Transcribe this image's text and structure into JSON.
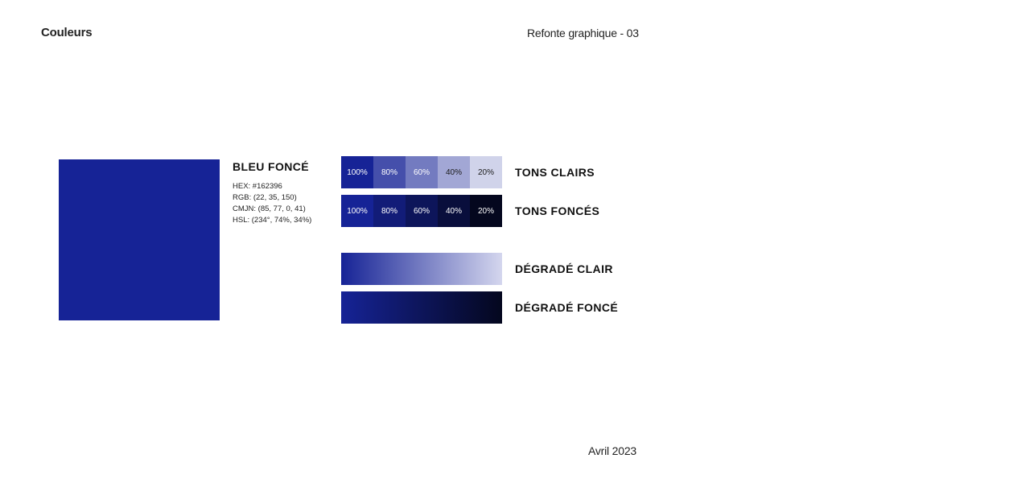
{
  "header": {
    "title": "Couleurs",
    "project": "Refonte graphique - 03"
  },
  "footer": {
    "date": "Avril 2023"
  },
  "color": {
    "name": "BLEU FONCÉ",
    "hex_color": "#162396",
    "specs": {
      "hex": "HEX: #162396",
      "rgb": "RGB: (22, 35, 150)",
      "cmjn": "CMJN: (85, 77, 0, 41)",
      "hsl": "HSL: (234°, 74%, 34%)"
    }
  },
  "tons_clairs": {
    "label": "TONS CLAIRS",
    "cells": [
      {
        "text": "100%",
        "color": "#162396",
        "text_color": "#ffffff"
      },
      {
        "text": "80%",
        "color": "#454fab",
        "text_color": "#ffffff"
      },
      {
        "text": "60%",
        "color": "#737bc0",
        "text_color": "#ffffff"
      },
      {
        "text": "40%",
        "color": "#a2a7d5",
        "text_color": "#1a1a1a"
      },
      {
        "text": "20%",
        "color": "#d0d3ea",
        "text_color": "#1a1a1a"
      }
    ]
  },
  "tons_fonces": {
    "label": "TONS FONCÉS",
    "cells": [
      {
        "text": "100%",
        "color": "#162396",
        "text_color": "#ffffff"
      },
      {
        "text": "80%",
        "color": "#121c78",
        "text_color": "#ffffff"
      },
      {
        "text": "60%",
        "color": "#0d155a",
        "text_color": "#ffffff"
      },
      {
        "text": "40%",
        "color": "#090e3c",
        "text_color": "#ffffff"
      },
      {
        "text": "20%",
        "color": "#04071e",
        "text_color": "#ffffff"
      }
    ]
  },
  "degrade_clair": {
    "label": "DÉGRADÉ CLAIR",
    "from": "#162396",
    "to": "#d4d6ee"
  },
  "degrade_fonce": {
    "label": "DÉGRADÉ FONCÉ",
    "from": "#162396",
    "to": "#04071e"
  }
}
